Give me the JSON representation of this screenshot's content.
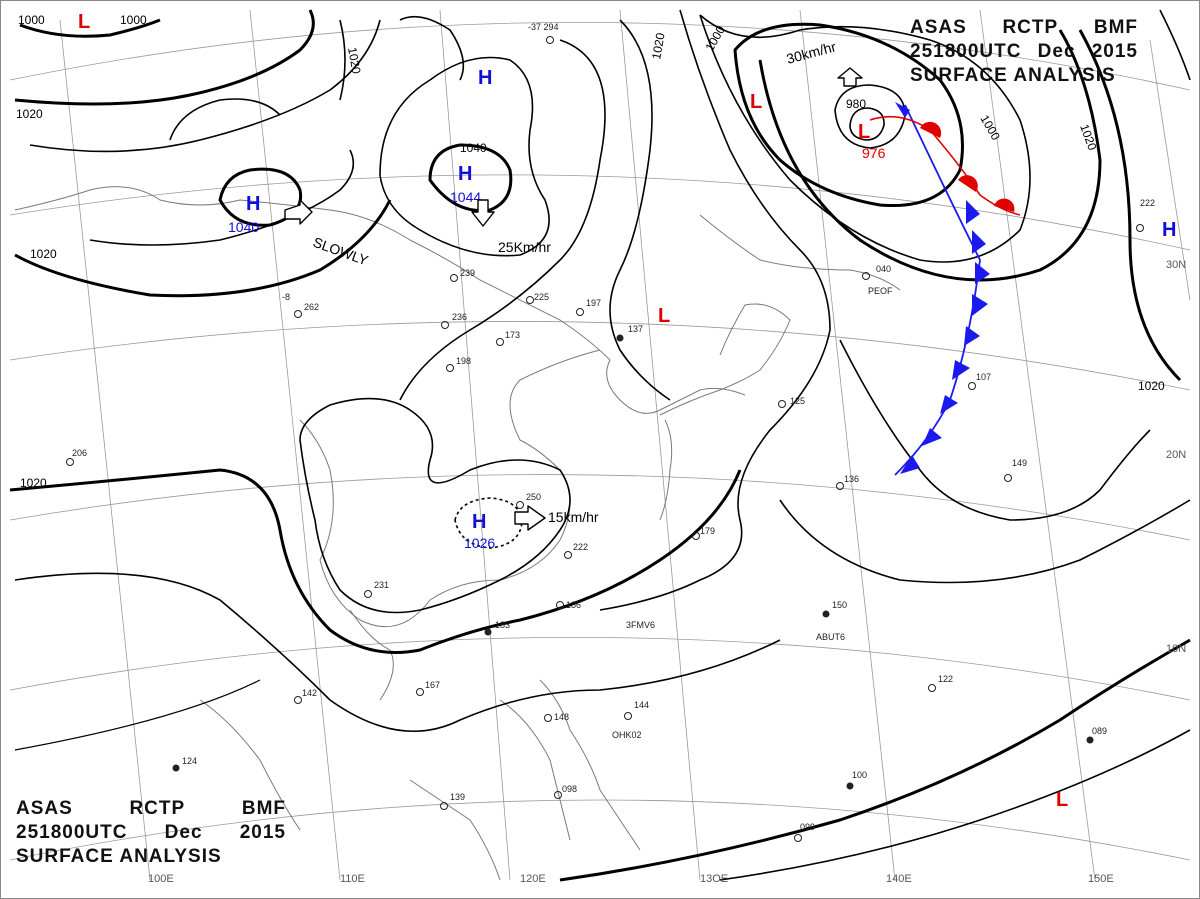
{
  "chart_title": {
    "agency": "ASAS",
    "station": "RCTP",
    "suffix": "BMF",
    "time": "251800UTC",
    "month": "Dec",
    "year": "2015",
    "product": "SURFACE ANALYSIS"
  },
  "colors": {
    "high": "#1010d8",
    "low": "#e00000",
    "isobar": "#000000",
    "grid": "#9a9a9a",
    "coast": "#7a7a7a",
    "cold_front": "#1a1aee",
    "warm_front": "#e00000"
  },
  "pressure_systems": [
    {
      "type": "H",
      "value": "1040",
      "motion": "SLOWLY"
    },
    {
      "type": "H",
      "value": "1044",
      "motion": "25Km/hr"
    },
    {
      "type": "H",
      "value": ""
    },
    {
      "type": "H",
      "value": "1026",
      "motion": "15km/hr"
    },
    {
      "type": "L",
      "value": "976",
      "motion": "30km/hr"
    },
    {
      "type": "L",
      "value": ""
    },
    {
      "type": "L",
      "value": ""
    },
    {
      "type": "L",
      "value": ""
    },
    {
      "type": "L",
      "value": ""
    },
    {
      "type": "H",
      "value": ""
    }
  ],
  "isobar_labels": [
    "1000",
    "1000",
    "1020",
    "1020",
    "1020",
    "1040",
    "1020",
    "1000",
    "980",
    "1000",
    "1020",
    "1020",
    "1020"
  ],
  "longitude_labels": [
    "100E",
    "110E",
    "120E",
    "13OE",
    "140E",
    "150E"
  ],
  "latitude_labels": [
    "30N",
    "20N",
    "10N"
  ],
  "station_plots": [
    "-37 294",
    "236",
    "173",
    "198",
    "250",
    "222",
    "186",
    "183",
    "167",
    "142",
    "124",
    "139",
    "098",
    "144",
    "148",
    "179",
    "136",
    "125",
    "107",
    "122",
    "150",
    "099",
    "100",
    "089",
    "149",
    "222",
    "040",
    "137",
    "239",
    "225",
    "197",
    "262",
    "206",
    "231",
    "-8"
  ],
  "station_ids": [
    "PEOF",
    "3FMV6",
    "ABUT6",
    "OHK02"
  ]
}
